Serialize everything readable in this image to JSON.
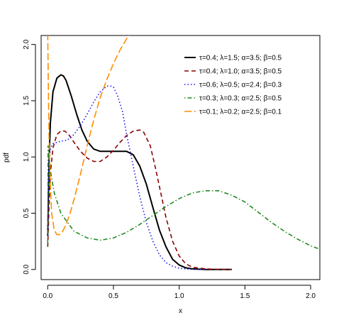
{
  "chart_data": {
    "type": "line",
    "title": "",
    "xlabel": "x",
    "ylabel": "pdf",
    "xlim": [
      -0.05,
      2.07
    ],
    "ylim": [
      -0.09,
      2.08
    ],
    "x_ticks": [
      0.0,
      0.5,
      1.0,
      1.5,
      2.0
    ],
    "x_tick_labels": [
      "0.0",
      "0.5",
      "1.0",
      "1.5",
      "2.0"
    ],
    "y_ticks": [
      0.0,
      0.5,
      1.0,
      1.5,
      2.0
    ],
    "y_tick_labels": [
      "0.0",
      "0.5",
      "1.0",
      "1.5",
      "2.0"
    ],
    "grid": false,
    "legend_position": "top-right",
    "series": [
      {
        "name": "τ=0.4; λ=1.5; α=3.5; β=0.5",
        "color": "#000000",
        "line_style": "solid",
        "x": [
          0.0,
          0.005,
          0.01,
          0.02,
          0.04,
          0.07,
          0.1,
          0.12,
          0.14,
          0.18,
          0.22,
          0.26,
          0.3,
          0.35,
          0.4,
          0.45,
          0.5,
          0.55,
          0.6,
          0.65,
          0.7,
          0.75,
          0.8,
          0.85,
          0.9,
          0.95,
          1.0,
          1.05,
          1.1,
          1.2,
          1.3,
          1.4
        ],
        "y": [
          0.3,
          0.6,
          0.95,
          1.3,
          1.58,
          1.7,
          1.73,
          1.72,
          1.68,
          1.54,
          1.38,
          1.24,
          1.14,
          1.07,
          1.05,
          1.05,
          1.05,
          1.05,
          1.05,
          1.02,
          0.92,
          0.76,
          0.55,
          0.35,
          0.2,
          0.09,
          0.04,
          0.015,
          0.005,
          0.0,
          0.0,
          0.0
        ]
      },
      {
        "name": "τ=0.4; λ=1.0; α=3.5; β=0.5",
        "color": "#8b0000",
        "line_style": "dashed",
        "x": [
          0.0,
          0.01,
          0.02,
          0.04,
          0.07,
          0.1,
          0.13,
          0.16,
          0.2,
          0.25,
          0.3,
          0.35,
          0.4,
          0.45,
          0.5,
          0.55,
          0.6,
          0.65,
          0.7,
          0.73,
          0.78,
          0.82,
          0.86,
          0.9,
          0.95,
          1.0,
          1.05,
          1.1,
          1.2,
          1.3,
          1.4
        ],
        "y": [
          0.2,
          0.55,
          0.85,
          1.08,
          1.2,
          1.23,
          1.23,
          1.2,
          1.13,
          1.05,
          0.99,
          0.96,
          0.96,
          1.0,
          1.06,
          1.13,
          1.19,
          1.23,
          1.24,
          1.22,
          1.1,
          0.9,
          0.68,
          0.46,
          0.25,
          0.12,
          0.05,
          0.02,
          0.005,
          0.0,
          0.0
        ]
      },
      {
        "name": "τ=0.6; λ=0.5; α=2.4; β=0.3",
        "color": "#1a1aee",
        "line_style": "dotted",
        "x": [
          0.0,
          0.005,
          0.01,
          0.02,
          0.04,
          0.07,
          0.1,
          0.15,
          0.2,
          0.25,
          0.3,
          0.35,
          0.4,
          0.45,
          0.48,
          0.5,
          0.53,
          0.57,
          0.6,
          0.65,
          0.7,
          0.75,
          0.8,
          0.85,
          0.9,
          0.95,
          1.0,
          1.1,
          1.2
        ],
        "y": [
          0.3,
          0.7,
          0.95,
          1.07,
          1.12,
          1.13,
          1.14,
          1.15,
          1.2,
          1.28,
          1.38,
          1.49,
          1.58,
          1.63,
          1.63,
          1.62,
          1.55,
          1.4,
          1.2,
          0.92,
          0.65,
          0.42,
          0.25,
          0.13,
          0.06,
          0.03,
          0.01,
          0.0,
          0.0
        ]
      },
      {
        "name": "τ=0.3; λ=0.3; α=2.5; β=0.5",
        "color": "#228b22",
        "line_style": "dashdot",
        "x": [
          0.0,
          0.003,
          0.01,
          0.02,
          0.05,
          0.1,
          0.2,
          0.3,
          0.4,
          0.5,
          0.6,
          0.7,
          0.8,
          0.9,
          1.0,
          1.1,
          1.2,
          1.3,
          1.4,
          1.5,
          1.6,
          1.7,
          1.8,
          1.9,
          2.0,
          2.07
        ],
        "y": [
          0.2,
          1.1,
          1.02,
          0.88,
          0.68,
          0.5,
          0.34,
          0.28,
          0.26,
          0.28,
          0.33,
          0.4,
          0.48,
          0.56,
          0.63,
          0.68,
          0.7,
          0.7,
          0.66,
          0.6,
          0.51,
          0.42,
          0.34,
          0.27,
          0.21,
          0.18
        ]
      },
      {
        "name": "τ=0.1; λ=0.2; α=2.5; β=0.1",
        "color": "#ff8c00",
        "line_style": "longdash",
        "x": [
          0.0,
          0.005,
          0.01,
          0.02,
          0.03,
          0.05,
          0.07,
          0.09,
          0.11,
          0.14,
          0.17,
          0.2,
          0.25,
          0.3,
          0.35,
          0.4,
          0.45,
          0.5,
          0.55,
          0.6,
          0.63
        ],
        "y": [
          2.1,
          1.6,
          1.2,
          0.75,
          0.5,
          0.35,
          0.31,
          0.31,
          0.33,
          0.4,
          0.5,
          0.62,
          0.85,
          1.1,
          1.33,
          1.53,
          1.69,
          1.83,
          1.95,
          2.05,
          2.1
        ]
      }
    ]
  }
}
